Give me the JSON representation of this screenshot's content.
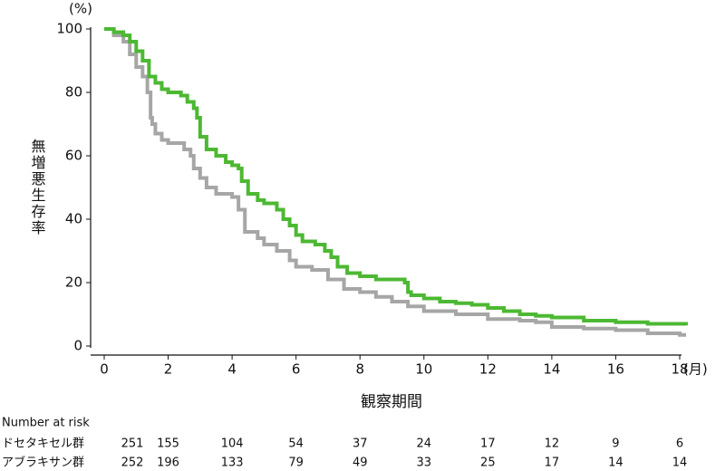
{
  "chart_data": {
    "type": "line",
    "step": true,
    "x_label": "観察期間",
    "x_unit": "(月)",
    "y_label": "無増悪生存率",
    "y_unit": "(%)",
    "xlim": [
      0,
      18
    ],
    "xticks": [
      0,
      2,
      4,
      6,
      8,
      10,
      12,
      14,
      16,
      18
    ],
    "ylim": [
      0,
      100
    ],
    "yticks": [
      0,
      20,
      40,
      60,
      80,
      100
    ],
    "risk_title": "Number at risk",
    "series": [
      {
        "name": "ドセタキセル群",
        "color": "#a6a6a6",
        "x": [
          0,
          0.3,
          0.6,
          0.8,
          1.0,
          1.2,
          1.35,
          1.45,
          1.5,
          1.6,
          1.8,
          2.0,
          2.5,
          2.7,
          2.8,
          3.0,
          3.2,
          3.5,
          4.0,
          4.2,
          4.4,
          4.8,
          5.0,
          5.4,
          5.8,
          6.0,
          6.5,
          7.0,
          7.5,
          8,
          8.5,
          9,
          9.5,
          10,
          11,
          12,
          13,
          13.5,
          14,
          15,
          16,
          17,
          18,
          18.2
        ],
        "values": [
          100,
          98,
          96,
          92,
          88,
          85,
          80,
          72,
          70,
          67,
          65,
          64,
          62,
          60,
          56,
          53,
          50,
          48,
          47,
          43,
          36,
          34,
          32,
          30,
          27,
          25,
          24,
          21,
          18,
          17,
          15.5,
          14,
          12.5,
          11,
          10,
          8.5,
          8,
          7.5,
          6,
          5.5,
          5,
          4,
          3.5,
          3.5
        ],
        "at_risk": [
          251,
          155,
          104,
          54,
          37,
          24,
          17,
          12,
          9,
          6
        ]
      },
      {
        "name": "アブラキサン群",
        "color": "#4db833",
        "x": [
          0,
          0.3,
          0.6,
          0.8,
          1.0,
          1.2,
          1.4,
          1.6,
          1.8,
          2.0,
          2.4,
          2.6,
          2.8,
          2.9,
          3.0,
          3.2,
          3.5,
          3.8,
          4.0,
          4.2,
          4.3,
          4.5,
          4.8,
          5.0,
          5.4,
          5.6,
          5.8,
          6.0,
          6.2,
          6.6,
          6.9,
          7.1,
          7.3,
          7.6,
          8.0,
          8.5,
          9.4,
          9.5,
          9.6,
          10,
          10.5,
          11,
          11.5,
          12,
          12.5,
          13,
          13.5,
          14,
          15,
          16,
          17,
          18.2
        ],
        "values": [
          100,
          99,
          98,
          96,
          93,
          90,
          85,
          83,
          81,
          80,
          79,
          77,
          75,
          72,
          66,
          62,
          60,
          58,
          57,
          56,
          52,
          48,
          46,
          45,
          43,
          40,
          38,
          35,
          33,
          32,
          30,
          28,
          25,
          23,
          22,
          21,
          20,
          17,
          16,
          15,
          14,
          13.5,
          13,
          12,
          11,
          10,
          9.5,
          9,
          8,
          7.5,
          7,
          6.5
        ],
        "at_risk": [
          252,
          196,
          133,
          79,
          49,
          33,
          25,
          17,
          14,
          14
        ]
      }
    ]
  }
}
